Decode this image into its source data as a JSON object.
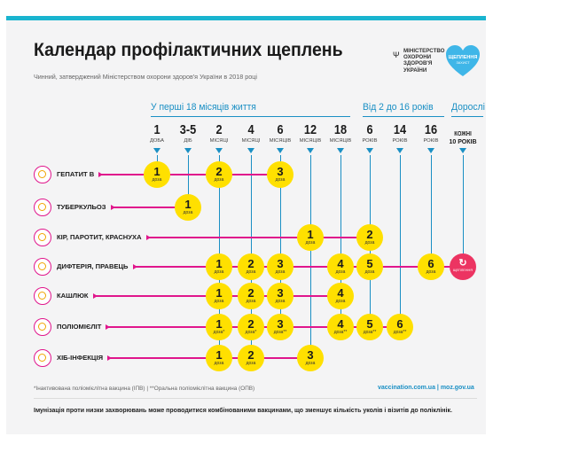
{
  "title": "Календар профілактичних щеплень",
  "subtitle": "Чинний, затверджений Міністерством охорони здоров'я України в 2018 році",
  "ministry": "МІНІСТЕРСТВО ОХОРОНИ ЗДОРОВ'Я УКРАЇНИ",
  "logo": {
    "text": "ЩЕПЛЕННЯ",
    "sub": "ЗАХИСТ"
  },
  "groups": {
    "infant": "У перші 18 місяців життя",
    "children": "Від 2 до 16 років",
    "adults": "Дорослі"
  },
  "ages": [
    {
      "num": "1",
      "unit": "ДОБА"
    },
    {
      "num": "3-5",
      "unit": "ДІБ"
    },
    {
      "num": "2",
      "unit": "МІСЯЦІ"
    },
    {
      "num": "4",
      "unit": "МІСЯЦІ"
    },
    {
      "num": "6",
      "unit": "МІСЯЦІВ"
    },
    {
      "num": "12",
      "unit": "МІСЯЦІВ"
    },
    {
      "num": "18",
      "unit": "МІСЯЦІВ"
    },
    {
      "num": "6",
      "unit": "РОКІВ"
    },
    {
      "num": "14",
      "unit": "РОКІВ"
    },
    {
      "num": "16",
      "unit": "РОКІВ"
    },
    {
      "num": "КОЖНІ",
      "unit": "10 РОКІВ"
    }
  ],
  "vaccines": [
    {
      "name": "ГЕПАТИТ В",
      "doses": [
        {
          "age": 0,
          "n": "1"
        },
        {
          "age": 2,
          "n": "2"
        },
        {
          "age": 4,
          "n": "3"
        }
      ]
    },
    {
      "name": "ТУБЕРКУЛЬОЗ",
      "doses": [
        {
          "age": 1,
          "n": "1"
        }
      ]
    },
    {
      "name": "КІР, ПАРОТИТ, КРАСНУХА",
      "doses": [
        {
          "age": 5,
          "n": "1"
        },
        {
          "age": 7,
          "n": "2"
        }
      ]
    },
    {
      "name": "ДИФТЕРІЯ, ПРАВЕЦЬ",
      "doses": [
        {
          "age": 2,
          "n": "1"
        },
        {
          "age": 3,
          "n": "2"
        },
        {
          "age": 4,
          "n": "3"
        },
        {
          "age": 6,
          "n": "4"
        },
        {
          "age": 7,
          "n": "5"
        },
        {
          "age": 9,
          "n": "6"
        }
      ],
      "adult": "ЩЕПЛЕННЯ"
    },
    {
      "name": "КАШЛЮК",
      "doses": [
        {
          "age": 2,
          "n": "1"
        },
        {
          "age": 3,
          "n": "2"
        },
        {
          "age": 4,
          "n": "3"
        },
        {
          "age": 6,
          "n": "4"
        }
      ]
    },
    {
      "name": "ПОЛІОМІЄЛІТ",
      "doses": [
        {
          "age": 2,
          "n": "1",
          "mark": "*"
        },
        {
          "age": 3,
          "n": "2",
          "mark": "*"
        },
        {
          "age": 4,
          "n": "3",
          "mark": "**"
        },
        {
          "age": 6,
          "n": "4",
          "mark": "**"
        },
        {
          "age": 7,
          "n": "5",
          "mark": "**"
        },
        {
          "age": 8,
          "n": "6",
          "mark": "**"
        }
      ]
    },
    {
      "name": "ХІБ-ІНФЕКЦІЯ",
      "doses": [
        {
          "age": 2,
          "n": "1"
        },
        {
          "age": 3,
          "n": "2"
        },
        {
          "age": 5,
          "n": "3"
        }
      ]
    }
  ],
  "dose_word": "доза",
  "footnotes": "*Інактивована поліомієлітна вакцина (ІПВ)   |   **Оральна поліомієлітна вакцина (ОПВ)",
  "sites": "vaccination.com.ua   |   moz.gov.ua",
  "bottom_note": "Імунізація проти низки захворювань може проводитися комбінованими вакцинами, що зменшує кількість уколів і візитів до поліклінік.",
  "colors": {
    "accent": "#19b4cf",
    "line_blue": "#1a8fc4",
    "line_pink": "#e0168c",
    "dose": "#ffe000",
    "adult": "#ec3462"
  }
}
